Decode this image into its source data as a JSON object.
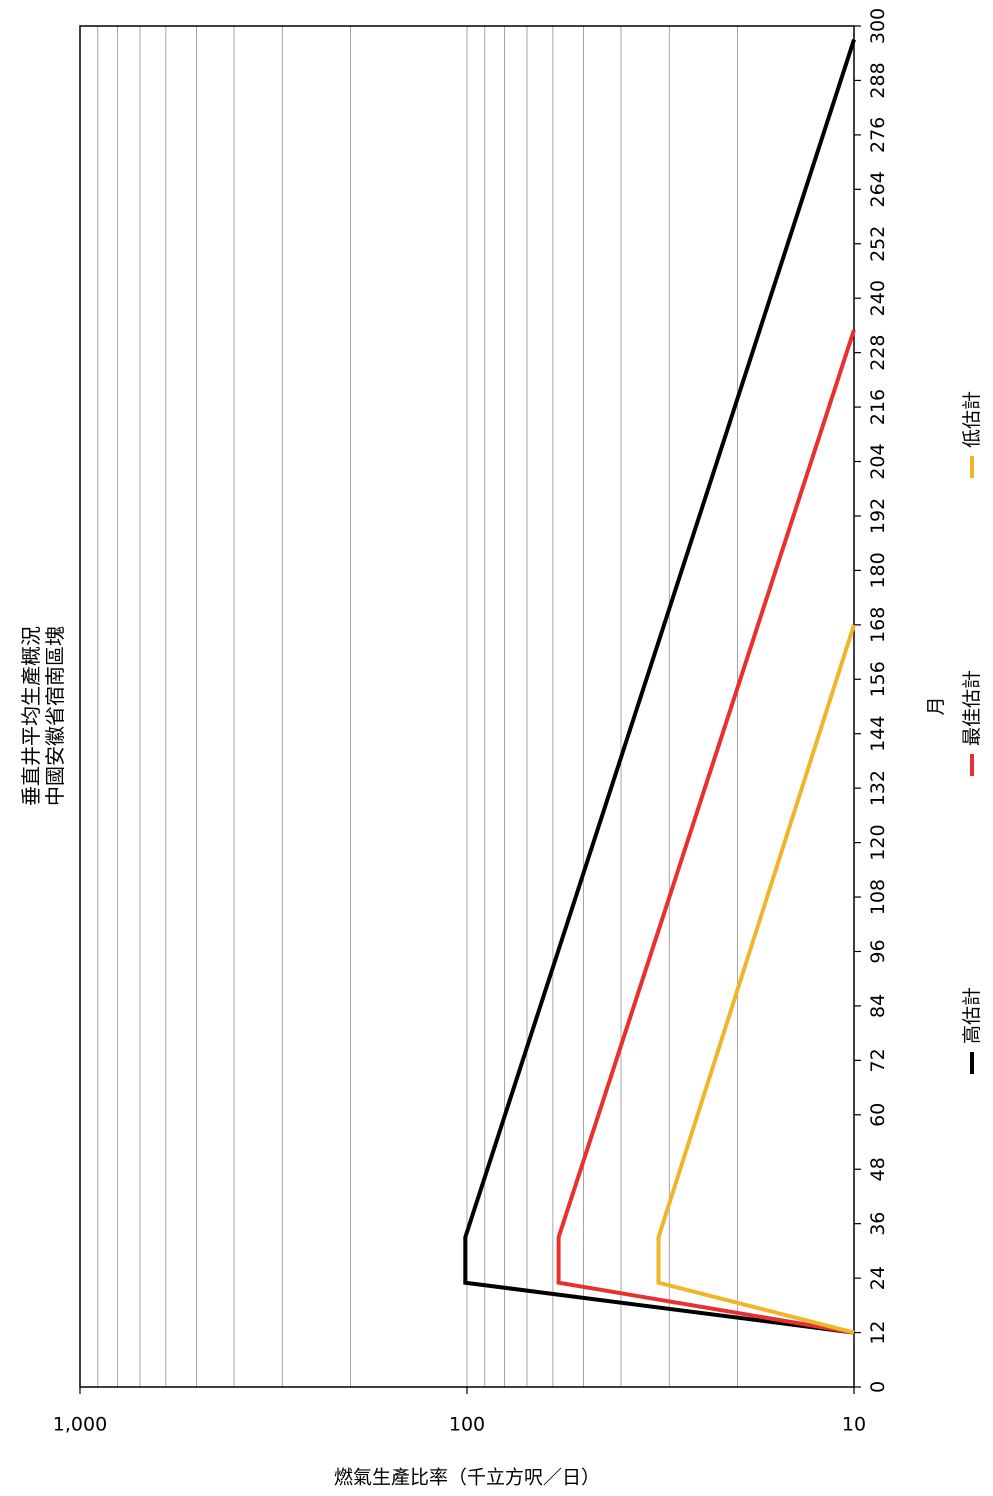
{
  "chart_data": {
    "type": "line",
    "title": "垂直井平均生產概況",
    "subtitle": "中國安徽省宿南區塊",
    "xlabel": "月",
    "ylabel": "燃氣生產比率（千立方呎／日）",
    "y_scale": "log",
    "ylim": [
      10,
      1000
    ],
    "xlim": [
      0,
      300
    ],
    "x_ticks": [
      "0",
      "12",
      "24",
      "36",
      "48",
      "60",
      "72",
      "84",
      "96",
      "108",
      "120",
      "132",
      "144",
      "156",
      "168",
      "180",
      "192",
      "204",
      "216",
      "228",
      "240",
      "252",
      "264",
      "276",
      "288",
      "300"
    ],
    "y_ticks": [
      "10",
      "100",
      "1,000"
    ],
    "grid": true,
    "legend_position": "bottom",
    "orientation": "rotated 90° (x axis runs bottom-to-top)",
    "series": [
      {
        "name": "高估計",
        "color": "#000000",
        "x": [
          12,
          23,
          33,
          297
        ],
        "y": [
          10,
          101,
          101,
          10
        ]
      },
      {
        "name": "最佳估計",
        "color": "#e8312f",
        "x": [
          12,
          23,
          33,
          233
        ],
        "y": [
          10,
          58,
          58,
          10
        ]
      },
      {
        "name": "低估計",
        "color": "#f0b62b",
        "x": [
          12,
          23,
          33,
          168
        ],
        "y": [
          10,
          32,
          32,
          10
        ]
      }
    ]
  }
}
